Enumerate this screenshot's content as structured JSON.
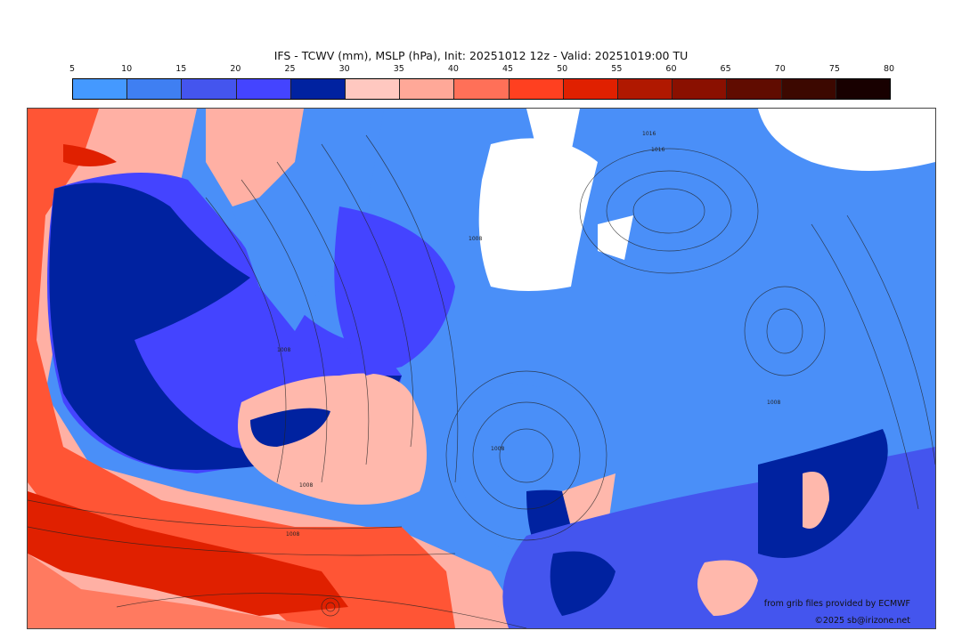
{
  "title": "IFS - TCWV (mm), MSLP (hPa), Init: 20251012 12z - Valid: 20251019:00 TU",
  "colorbar": {
    "ticks": [
      "5",
      "10",
      "15",
      "20",
      "25",
      "30",
      "35",
      "40",
      "45",
      "50",
      "55",
      "60",
      "65",
      "70",
      "75",
      "80"
    ],
    "colors": [
      "#4499ff",
      "#3f7ff2",
      "#4455ee",
      "#4444ff",
      "#0022a0",
      "#ffc8c0",
      "#ffa898",
      "#ff7058",
      "#ff4020",
      "#e02000",
      "#b01800",
      "#8a1000",
      "#600c00",
      "#3c0800",
      "#180000"
    ]
  },
  "map": {
    "isobar_labels": [
      "1008",
      "1008",
      "1008",
      "1016",
      "1016",
      "1008",
      "1008",
      "1008"
    ]
  },
  "credits": {
    "source": "from grib files provided by ECMWF",
    "copyright": "©2025 sb@irizone.net"
  }
}
